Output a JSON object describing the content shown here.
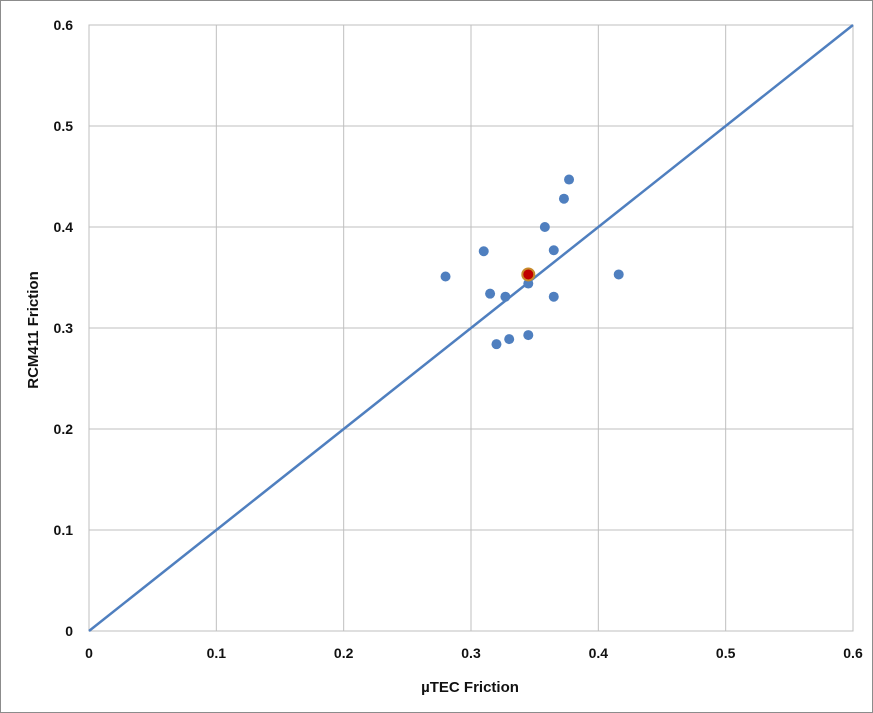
{
  "chart_data": {
    "type": "scatter",
    "title": "",
    "xlabel": "µTEC Friction",
    "ylabel": "RCM411 Friction",
    "xlim": [
      0,
      0.6
    ],
    "ylim": [
      0,
      0.6
    ],
    "x_ticks": [
      "0",
      "0.1",
      "0.2",
      "0.3",
      "0.4",
      "0.5",
      "0.6"
    ],
    "y_ticks": [
      "0",
      "0.1",
      "0.2",
      "0.3",
      "0.4",
      "0.5",
      "0.6"
    ],
    "grid": true,
    "legend": "none",
    "reference_line": {
      "x": [
        0,
        0.6
      ],
      "y": [
        0,
        0.6
      ],
      "color": "#4f7fbf"
    },
    "series": [
      {
        "color": "#4f7fbf",
        "points": [
          {
            "x": 0.28,
            "y": 0.351
          },
          {
            "x": 0.31,
            "y": 0.376
          },
          {
            "x": 0.315,
            "y": 0.334
          },
          {
            "x": 0.32,
            "y": 0.284
          },
          {
            "x": 0.327,
            "y": 0.331
          },
          {
            "x": 0.33,
            "y": 0.289
          },
          {
            "x": 0.345,
            "y": 0.293
          },
          {
            "x": 0.345,
            "y": 0.344
          },
          {
            "x": 0.358,
            "y": 0.4
          },
          {
            "x": 0.365,
            "y": 0.377
          },
          {
            "x": 0.365,
            "y": 0.331
          },
          {
            "x": 0.373,
            "y": 0.428
          },
          {
            "x": 0.377,
            "y": 0.447
          },
          {
            "x": 0.416,
            "y": 0.353
          }
        ]
      },
      {
        "color": "#c00000",
        "points": [
          {
            "x": 0.345,
            "y": 0.353
          }
        ]
      }
    ]
  }
}
